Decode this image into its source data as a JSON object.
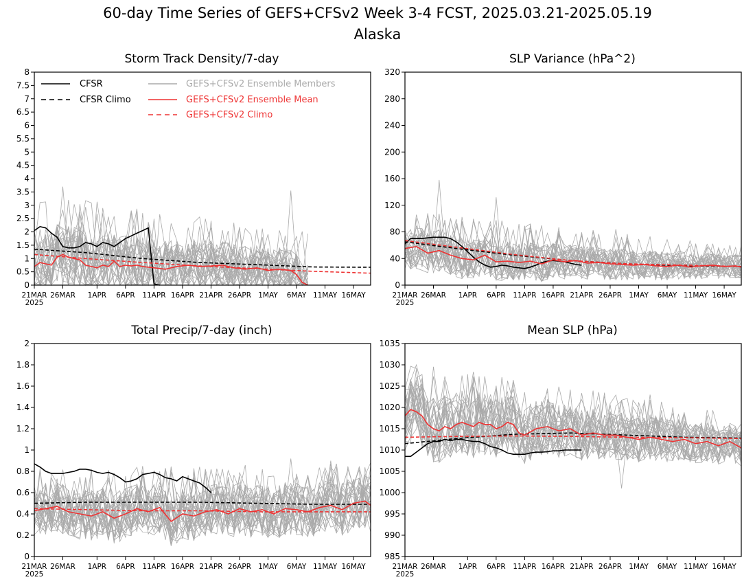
{
  "title": "60-day Time Series of GEFS+CFSv2 Week 3-4 FCST, 2025.03.21-2025.05.19",
  "subtitle": "Alaska",
  "colors": {
    "cfsr": "#000000",
    "members": "#aaaaaa",
    "mean": "#ee3333",
    "gefs_climo": "#ee3333"
  },
  "x_tick_labels": [
    "21MAR",
    "26MAR",
    "1APR",
    "6APR",
    "11APR",
    "16APR",
    "21APR",
    "26APR",
    "1MAY",
    "6MAY",
    "11MAY",
    "16MAY"
  ],
  "x_year_label": "2025",
  "legend": {
    "cfsr": "CFSR",
    "cfsr_climo": "CFSR Climo",
    "members": "GEFS+CFSv2 Ensemble Members",
    "mean": "GEFS+CFSv2 Ensemble Mean",
    "gefs_climo": "GEFS+CFSv2 Climo"
  },
  "chart_data": [
    {
      "type": "line",
      "title": "Storm Track Density/7-day",
      "x_days": [
        1,
        60
      ],
      "xticks": [
        1,
        6,
        12,
        17,
        22,
        27,
        32,
        37,
        42,
        47,
        52,
        57
      ],
      "ylim": [
        0,
        8
      ],
      "yticks": [
        0,
        0.5,
        1,
        1.5,
        2,
        2.5,
        3,
        3.5,
        4,
        4.5,
        5,
        5.5,
        6,
        6.5,
        7,
        7.5,
        8
      ],
      "members_band": {
        "days": [
          1,
          49
        ],
        "low": [
          0,
          0
        ],
        "high": [
          2.8,
          1.6
        ],
        "spikes": [
          [
            6,
            3.7
          ],
          [
            46,
            3.55
          ],
          [
            7,
            3.2
          ]
        ]
      },
      "series": [
        {
          "name": "CFSR",
          "style": "solid",
          "color": "#000000",
          "x": [
            1,
            2,
            3,
            4,
            5,
            6,
            7,
            8,
            9,
            10,
            11,
            12,
            13,
            14,
            15,
            16,
            17,
            18,
            19,
            20,
            21,
            22,
            23
          ],
          "y": [
            2.05,
            2.2,
            2.15,
            1.95,
            1.8,
            1.45,
            1.4,
            1.4,
            1.45,
            1.6,
            1.55,
            1.45,
            1.6,
            1.55,
            1.45,
            1.6,
            1.75,
            1.85,
            1.95,
            2.05,
            2.15,
            0.05,
            0
          ]
        },
        {
          "name": "CFSR Climo",
          "style": "dashed",
          "color": "#000000",
          "x": [
            1,
            10,
            20,
            30,
            40,
            50,
            60
          ],
          "y": [
            1.35,
            1.22,
            1.0,
            0.85,
            0.77,
            0.68,
            0.67
          ]
        },
        {
          "name": "GEFS+CFSv2 Ensemble Mean",
          "style": "solid",
          "color": "#ee3333",
          "x": [
            1,
            2,
            3,
            4,
            5,
            6,
            7,
            8,
            9,
            10,
            11,
            12,
            13,
            14,
            15,
            16,
            17,
            18,
            19,
            20,
            22,
            24,
            26,
            28,
            30,
            32,
            34,
            36,
            38,
            40,
            42,
            44,
            46,
            47,
            48,
            49
          ],
          "y": [
            0.7,
            0.85,
            0.8,
            0.75,
            1.05,
            1.15,
            1.05,
            1.0,
            0.95,
            0.75,
            0.7,
            0.65,
            0.75,
            0.7,
            0.9,
            0.7,
            0.75,
            0.72,
            0.75,
            0.7,
            0.65,
            0.6,
            0.7,
            0.75,
            0.7,
            0.72,
            0.75,
            0.65,
            0.6,
            0.65,
            0.55,
            0.6,
            0.55,
            0.4,
            0.1,
            0
          ]
        },
        {
          "name": "GEFS+CFSv2 Climo",
          "style": "dashed",
          "color": "#ee3333",
          "x": [
            1,
            10,
            20,
            30,
            40,
            50,
            60
          ],
          "y": [
            1.15,
            1.0,
            0.85,
            0.72,
            0.62,
            0.52,
            0.45
          ]
        }
      ]
    },
    {
      "type": "line",
      "title": "SLP Variance (hPa^2)",
      "x_days": [
        1,
        60
      ],
      "xticks": [
        1,
        6,
        12,
        17,
        22,
        27,
        32,
        37,
        42,
        47,
        52,
        57
      ],
      "ylim": [
        0,
        320
      ],
      "yticks": [
        0,
        40,
        80,
        120,
        160,
        200,
        240,
        280,
        320
      ],
      "members_band": {
        "days": [
          1,
          60
        ],
        "low": [
          25,
          12
        ],
        "high": [
          95,
          50
        ],
        "spikes": [
          [
            7,
            158
          ],
          [
            17,
            132
          ],
          [
            62,
            82
          ],
          [
            38,
            84
          ]
        ]
      },
      "series": [
        {
          "name": "CFSR",
          "style": "solid",
          "color": "#000000",
          "x": [
            1,
            2,
            3,
            4,
            5,
            6,
            7,
            8,
            9,
            10,
            11,
            12,
            13,
            14,
            15,
            16,
            17,
            18,
            19,
            20,
            21,
            22,
            23,
            24,
            25,
            26,
            27,
            28,
            29,
            30,
            31,
            32
          ],
          "y": [
            62,
            70,
            70,
            70,
            71,
            72,
            72,
            72,
            70,
            65,
            58,
            50,
            42,
            35,
            30,
            27,
            28,
            30,
            29,
            27,
            26,
            25,
            27,
            30,
            34,
            36,
            37,
            36,
            35,
            33,
            31,
            30
          ]
        },
        {
          "name": "CFSR Climo",
          "style": "dashed",
          "color": "#000000",
          "x": [
            1,
            10,
            20,
            30,
            40,
            50,
            60
          ],
          "y": [
            65,
            55,
            45,
            37,
            32,
            29,
            28
          ]
        },
        {
          "name": "GEFS+CFSv2 Ensemble Mean",
          "style": "solid",
          "color": "#ee3333",
          "x": [
            1,
            3,
            5,
            7,
            9,
            11,
            13,
            15,
            17,
            19,
            21,
            23,
            25,
            27,
            29,
            31,
            33,
            35,
            37,
            39,
            41,
            43,
            45,
            47,
            49,
            51,
            53,
            55,
            57,
            59,
            60
          ],
          "y": [
            55,
            58,
            48,
            52,
            45,
            40,
            38,
            45,
            35,
            36,
            34,
            36,
            32,
            38,
            35,
            37,
            33,
            34,
            32,
            31,
            30,
            31,
            29,
            28,
            30,
            27,
            29,
            30,
            28,
            29,
            27
          ]
        },
        {
          "name": "GEFS+CFSv2 Climo",
          "style": "dashed",
          "color": "#ee3333",
          "x": [
            1,
            10,
            20,
            30,
            40,
            50,
            60
          ],
          "y": [
            67,
            57,
            46,
            37,
            32,
            30,
            28
          ]
        }
      ]
    },
    {
      "type": "line",
      "title": "Total Precip/7-day (inch)",
      "x_days": [
        1,
        60
      ],
      "xticks": [
        1,
        6,
        12,
        17,
        22,
        27,
        32,
        37,
        42,
        47,
        52,
        57
      ],
      "ylim": [
        0,
        2
      ],
      "yticks": [
        0,
        0.2,
        0.4,
        0.6,
        0.8,
        1,
        1.2,
        1.4,
        1.6,
        1.8,
        2
      ],
      "members_band": {
        "days": [
          1,
          60
        ],
        "low": [
          0.2,
          0.22
        ],
        "high": [
          0.7,
          0.75
        ],
        "spikes": [
          [
            46,
            0.92
          ],
          [
            53,
            0.9
          ],
          [
            20,
            0.85
          ]
        ]
      },
      "series": [
        {
          "name": "CFSR",
          "style": "solid",
          "color": "#000000",
          "x": [
            1,
            2,
            3,
            4,
            5,
            6,
            7,
            8,
            9,
            10,
            11,
            12,
            13,
            14,
            15,
            16,
            17,
            18,
            19,
            20,
            21,
            22,
            23,
            24,
            25,
            26,
            27,
            28,
            29,
            30,
            31,
            32
          ],
          "y": [
            0.87,
            0.84,
            0.8,
            0.78,
            0.78,
            0.78,
            0.79,
            0.8,
            0.82,
            0.82,
            0.81,
            0.79,
            0.78,
            0.79,
            0.77,
            0.74,
            0.7,
            0.71,
            0.73,
            0.77,
            0.78,
            0.79,
            0.77,
            0.74,
            0.73,
            0.71,
            0.75,
            0.73,
            0.71,
            0.69,
            0.65,
            0.6
          ]
        },
        {
          "name": "CFSR Climo",
          "style": "dashed",
          "color": "#000000",
          "x": [
            1,
            10,
            20,
            30,
            40,
            50,
            60
          ],
          "y": [
            0.5,
            0.51,
            0.51,
            0.51,
            0.5,
            0.49,
            0.49
          ]
        },
        {
          "name": "GEFS+CFSv2 Ensemble Mean",
          "style": "solid",
          "color": "#ee3333",
          "x": [
            1,
            3,
            5,
            7,
            9,
            11,
            13,
            15,
            17,
            19,
            21,
            23,
            25,
            27,
            29,
            31,
            33,
            35,
            37,
            39,
            41,
            43,
            45,
            47,
            49,
            51,
            53,
            55,
            57,
            59,
            60
          ],
          "y": [
            0.43,
            0.45,
            0.47,
            0.42,
            0.4,
            0.38,
            0.42,
            0.36,
            0.4,
            0.45,
            0.42,
            0.46,
            0.33,
            0.4,
            0.38,
            0.42,
            0.44,
            0.4,
            0.45,
            0.42,
            0.44,
            0.4,
            0.45,
            0.44,
            0.42,
            0.46,
            0.48,
            0.44,
            0.5,
            0.52,
            0.48
          ]
        },
        {
          "name": "GEFS+CFSv2 Climo",
          "style": "dashed",
          "color": "#ee3333",
          "x": [
            1,
            10,
            20,
            30,
            40,
            50,
            60
          ],
          "y": [
            0.45,
            0.44,
            0.43,
            0.43,
            0.42,
            0.42,
            0.42
          ]
        }
      ]
    },
    {
      "type": "line",
      "title": "Mean SLP (hPa)",
      "x_days": [
        1,
        60
      ],
      "xticks": [
        1,
        6,
        12,
        17,
        22,
        27,
        32,
        37,
        42,
        47,
        52,
        57
      ],
      "ylim": [
        985,
        1035
      ],
      "yticks": [
        985,
        990,
        995,
        1000,
        1005,
        1010,
        1015,
        1020,
        1025,
        1030,
        1035
      ],
      "members_band": {
        "days": [
          1,
          60
        ],
        "low": [
          1010,
          1007
        ],
        "high": [
          1027,
          1016
        ],
        "spikes": [
          [
            3,
            1029
          ],
          [
            39,
            1001
          ],
          [
            44,
            1023
          ]
        ]
      },
      "series": [
        {
          "name": "CFSR",
          "style": "solid",
          "color": "#000000",
          "x": [
            1,
            2,
            3,
            4,
            5,
            6,
            7,
            8,
            9,
            10,
            11,
            12,
            13,
            14,
            15,
            16,
            17,
            18,
            19,
            20,
            21,
            22,
            23,
            24,
            25,
            26,
            27,
            28,
            29,
            30,
            31,
            32
          ],
          "y": [
            1008.5,
            1008.5,
            1009.5,
            1010.5,
            1011.5,
            1012,
            1012,
            1012.5,
            1012.2,
            1012.5,
            1012.5,
            1012.2,
            1012,
            1012,
            1011.5,
            1010.8,
            1010.5,
            1010,
            1009.3,
            1009,
            1009,
            1009,
            1009.3,
            1009.5,
            1009.5,
            1009.6,
            1009.8,
            1009.8,
            1010,
            1010,
            1010,
            1010
          ]
        },
        {
          "name": "CFSR Climo",
          "style": "dashed",
          "color": "#000000",
          "x": [
            1,
            10,
            20,
            30,
            40,
            50,
            60
          ],
          "y": [
            1011.5,
            1012.7,
            1013.7,
            1014,
            1013.5,
            1013,
            1012.8
          ]
        },
        {
          "name": "GEFS+CFSv2 Ensemble Mean",
          "style": "solid",
          "color": "#ee3333",
          "x": [
            1,
            2,
            3,
            4,
            5,
            6,
            7,
            8,
            9,
            10,
            11,
            12,
            13,
            14,
            15,
            16,
            17,
            18,
            19,
            20,
            21,
            22,
            24,
            26,
            28,
            30,
            32,
            34,
            36,
            38,
            40,
            42,
            44,
            46,
            48,
            50,
            52,
            54,
            56,
            58,
            60
          ],
          "y": [
            1018,
            1019.5,
            1019,
            1018,
            1016,
            1015,
            1014.5,
            1015.5,
            1015,
            1016,
            1016.5,
            1016,
            1015.5,
            1016.5,
            1016,
            1016,
            1015,
            1015.5,
            1016.5,
            1016,
            1014,
            1013.5,
            1015,
            1015.5,
            1014.5,
            1015,
            1013.5,
            1014,
            1013.5,
            1013.5,
            1013,
            1012.5,
            1013,
            1012.5,
            1012,
            1012.5,
            1011.5,
            1012,
            1011,
            1012,
            1010.5
          ]
        },
        {
          "name": "GEFS+CFSv2 Climo",
          "style": "dashed",
          "color": "#ee3333",
          "x": [
            1,
            10,
            20,
            30,
            40,
            50,
            60
          ],
          "y": [
            1013,
            1013.2,
            1013.3,
            1013.2,
            1013,
            1012.9,
            1012.7
          ]
        }
      ]
    }
  ]
}
